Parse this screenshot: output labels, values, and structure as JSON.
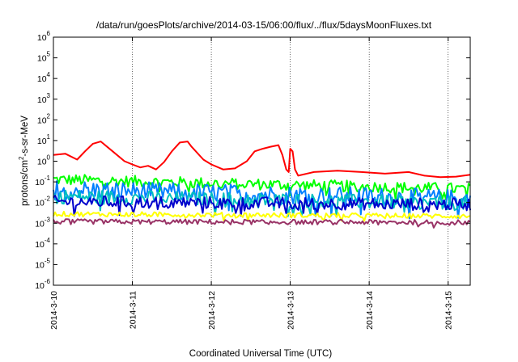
{
  "chart_data": {
    "type": "line",
    "title": "/data/run/goesPlots/archive/2014-03-15/06:00/flux/../flux/5daysMoonFluxes.txt",
    "xlabel": "Coordinated Universal Time (UTC)",
    "ylabel_parts": {
      "a": "protons/cm",
      "sup": "2",
      "b": "-s-sr-MeV"
    },
    "yscale": "log",
    "ylim_exp": [
      -6,
      6
    ],
    "y_tick_base": "10",
    "y_ticks_exp": [
      "-6",
      "-5",
      "-4",
      "-3",
      "-2",
      "-1",
      "0",
      "1",
      "2",
      "3",
      "4",
      "5",
      "6"
    ],
    "x_ticks": [
      "2014-3-10",
      "2014-3-11",
      "2014-3-12",
      "2014-3-13",
      "2014-3-14",
      "2014-3-15"
    ],
    "x_range_days": [
      0,
      5.28
    ],
    "grid": "vertical dotted at x ticks",
    "legend": "none",
    "series": [
      {
        "color": "#ff0000",
        "points": [
          [
            0,
            2
          ],
          [
            0.15,
            2.3
          ],
          [
            0.3,
            1.2
          ],
          [
            0.4,
            3
          ],
          [
            0.5,
            7
          ],
          [
            0.6,
            9
          ],
          [
            0.75,
            3
          ],
          [
            0.9,
            1
          ],
          [
            1,
            0.7
          ],
          [
            1.1,
            0.5
          ],
          [
            1.2,
            0.6
          ],
          [
            1.3,
            0.4
          ],
          [
            1.4,
            0.9
          ],
          [
            1.5,
            3
          ],
          [
            1.6,
            8
          ],
          [
            1.7,
            9
          ],
          [
            1.75,
            5
          ],
          [
            1.9,
            1.2
          ],
          [
            2,
            0.7
          ],
          [
            2.15,
            0.4
          ],
          [
            2.3,
            0.45
          ],
          [
            2.45,
            1
          ],
          [
            2.55,
            3
          ],
          [
            2.65,
            4
          ],
          [
            2.75,
            5
          ],
          [
            2.85,
            6
          ],
          [
            2.9,
            2
          ],
          [
            2.95,
            0.4
          ],
          [
            2.98,
            0.3
          ],
          [
            3.0,
            4
          ],
          [
            3.03,
            3
          ],
          [
            3.06,
            0.4
          ],
          [
            3.1,
            0.2
          ],
          [
            3.3,
            0.3
          ],
          [
            3.6,
            0.35
          ],
          [
            3.9,
            0.3
          ],
          [
            4.2,
            0.25
          ],
          [
            4.5,
            0.3
          ],
          [
            4.7,
            0.2
          ],
          [
            4.9,
            0.17
          ],
          [
            5.1,
            0.18
          ],
          [
            5.28,
            0.22
          ]
        ]
      },
      {
        "color": "#00ff00",
        "base": 0.13,
        "end": 0.045,
        "spread": 0.28
      },
      {
        "color": "#0080ff",
        "base": 0.045,
        "end": 0.015,
        "spread": 0.45
      },
      {
        "color": "#00c0c0",
        "base": 0.02,
        "end": 0.009,
        "spread": 0.35
      },
      {
        "color": "#0000cc",
        "base": 0.011,
        "end": 0.008,
        "spread": 0.3
      },
      {
        "color": "#ffff00",
        "base": 0.0028,
        "end": 0.0022,
        "spread": 0.12
      },
      {
        "color": "#993366",
        "base": 0.0012,
        "end": 0.0011,
        "spread": 0.12
      }
    ]
  }
}
